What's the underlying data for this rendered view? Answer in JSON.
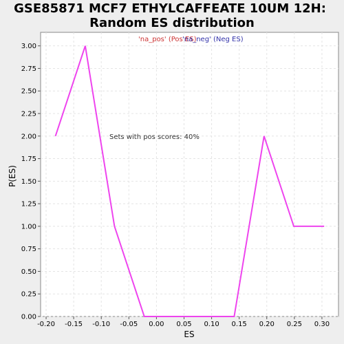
{
  "chart_data": {
    "type": "line",
    "title_line1": "GSE85871 MCF7 ETHYLCAFFEATE 10UM 12H:",
    "title_line2": "Random ES distribution",
    "xlabel": "ES",
    "ylabel": "P(ES)",
    "xlim": [
      -0.21,
      0.33
    ],
    "ylim": [
      0,
      3.15
    ],
    "x_ticks": [
      -0.2,
      -0.15,
      -0.1,
      -0.05,
      0.0,
      0.05,
      0.1,
      0.15,
      0.2,
      0.25,
      0.3
    ],
    "x_tick_labels": [
      "-0.20",
      "-0.15",
      "-0.10",
      "-0.05",
      "0.00",
      "0.05",
      "0.10",
      "0.15",
      "0.20",
      "0.25",
      "0.30"
    ],
    "y_ticks": [
      0,
      0.25,
      0.5,
      0.75,
      1.0,
      1.25,
      1.5,
      1.75,
      2.0,
      2.25,
      2.5,
      2.75,
      3.0
    ],
    "y_tick_labels": [
      "0.00",
      "0.25",
      "0.50",
      "0.75",
      "1.00",
      "1.25",
      "1.50",
      "1.75",
      "2.00",
      "2.25",
      "2.50",
      "2.75",
      "3.00"
    ],
    "grid": true,
    "legend": [
      {
        "label": "'na_pos' (Pos ES)",
        "color": "#cc3333"
      },
      {
        "label": "'na_neg' (Neg ES)",
        "color": "#3333aa"
      }
    ],
    "annotation": "Sets with pos scores: 40%",
    "series": [
      {
        "color": "#ee44ee",
        "x": [
          -0.183,
          -0.129,
          -0.076,
          -0.022,
          0.032,
          0.087,
          0.141,
          0.195,
          0.249,
          0.304
        ],
        "y": [
          2.0,
          3.0,
          1.0,
          0.0,
          0.0,
          0.0,
          0.0,
          2.0,
          1.0,
          1.0
        ]
      }
    ]
  }
}
